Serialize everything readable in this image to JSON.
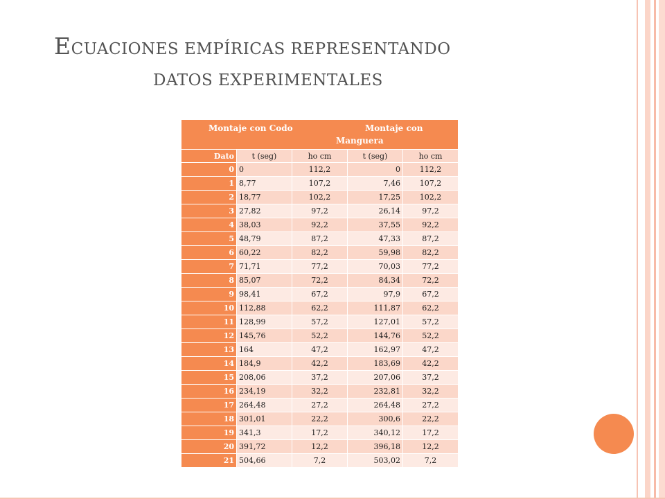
{
  "title": {
    "line1": {
      "cap": "E",
      "rest": "cuaciones empíricas representando"
    },
    "line2": "datos experimentales"
  },
  "table": {
    "group_headers": {
      "a": "Montaje con Codo",
      "b": "Montaje con",
      "c": "Manguera"
    },
    "columns": [
      "Dato",
      "t (seg)",
      "ho cm",
      "t (seg)",
      "ho cm"
    ],
    "rows": [
      [
        "0",
        "0",
        "112,2",
        "0",
        "112,2"
      ],
      [
        "1",
        "8,77",
        "107,2",
        "7,46",
        "107,2"
      ],
      [
        "2",
        "18,77",
        "102,2",
        "17,25",
        "102,2"
      ],
      [
        "3",
        "27,82",
        "97,2",
        "26,14",
        "97,2"
      ],
      [
        "4",
        "38,03",
        "92,2",
        "37,55",
        "92,2"
      ],
      [
        "5",
        "48,79",
        "87,2",
        "47,33",
        "87,2"
      ],
      [
        "6",
        "60,22",
        "82,2",
        "59,98",
        "82,2"
      ],
      [
        "7",
        "71,71",
        "77,2",
        "70,03",
        "77,2"
      ],
      [
        "8",
        "85,07",
        "72,2",
        "84,34",
        "72,2"
      ],
      [
        "9",
        "98,41",
        "67,2",
        "97,9",
        "67,2"
      ],
      [
        "10",
        "112,88",
        "62,2",
        "111,87",
        "62,2"
      ],
      [
        "11",
        "128,99",
        "57,2",
        "127,01",
        "57,2"
      ],
      [
        "12",
        "145,76",
        "52,2",
        "144,76",
        "52,2"
      ],
      [
        "13",
        "164",
        "47,2",
        "162,97",
        "47,2"
      ],
      [
        "14",
        "184,9",
        "42,2",
        "183,69",
        "42,2"
      ],
      [
        "15",
        "208,06",
        "37,2",
        "207,06",
        "37,2"
      ],
      [
        "16",
        "234,19",
        "32,2",
        "232,81",
        "32,2"
      ],
      [
        "17",
        "264,48",
        "27,2",
        "264,48",
        "27,2"
      ],
      [
        "18",
        "301,01",
        "22,2",
        "300,6",
        "22,2"
      ],
      [
        "19",
        "341,3",
        "17,2",
        "340,12",
        "17,2"
      ],
      [
        "20",
        "391,72",
        "12,2",
        "396,18",
        "12,2"
      ],
      [
        "21",
        "504,66",
        "7,2",
        "503,02",
        "7,2"
      ]
    ]
  },
  "colors": {
    "accent": "#f58a50",
    "row_light": "#fbd7c9",
    "row_lighter": "#fdeae3",
    "title_text": "#525252"
  }
}
